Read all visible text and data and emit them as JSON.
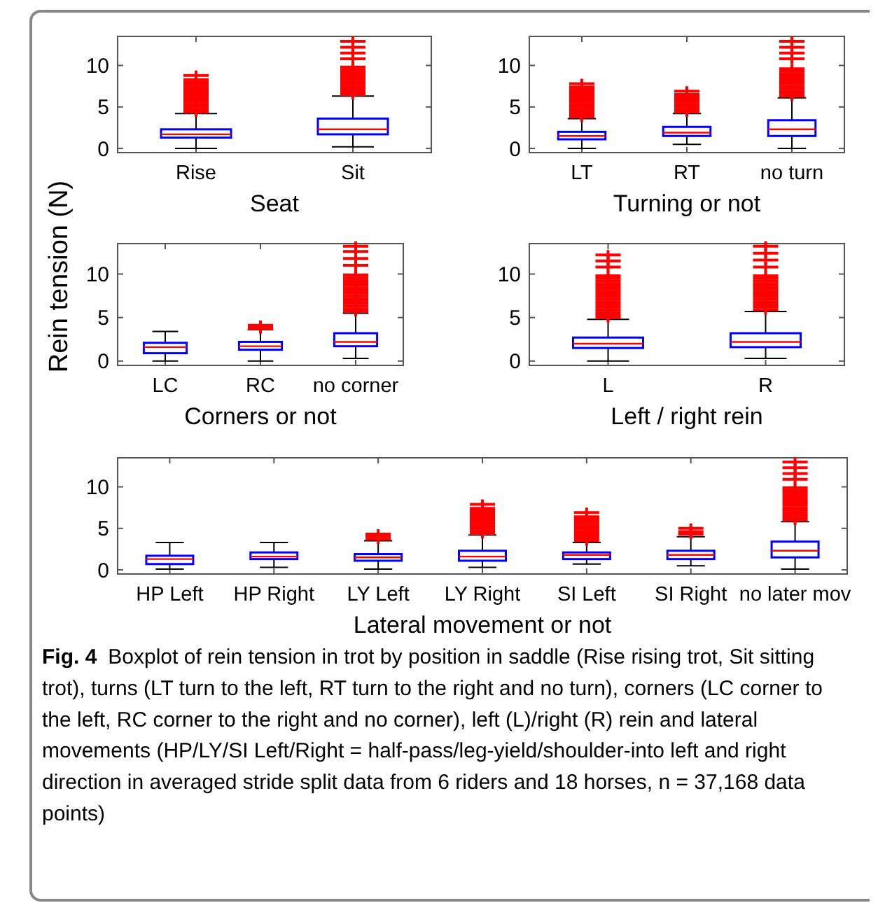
{
  "chart_data": [
    {
      "type": "box",
      "xlabel": "Seat",
      "categories": [
        "Rise",
        "Sit"
      ],
      "ylim": [
        -0.5,
        13.5
      ],
      "yticks": [
        0,
        5,
        10
      ],
      "boxes": [
        {
          "low": 0,
          "q1": 1.3,
          "median": 1.7,
          "q3": 2.3,
          "high": 4.2,
          "outliers": [
            4.4,
            4.7,
            5.0,
            5.3,
            5.6,
            5.9,
            6.2,
            6.5,
            6.8,
            7.1,
            7.4,
            7.7,
            8.0,
            8.3,
            8.8
          ]
        },
        {
          "low": 0.2,
          "q1": 1.7,
          "median": 2.3,
          "q3": 3.6,
          "high": 6.3,
          "outliers": [
            6.5,
            6.8,
            7.1,
            7.4,
            7.7,
            8.0,
            8.3,
            8.6,
            8.9,
            9.2,
            9.5,
            9.8,
            10.8,
            11.5,
            12.2,
            12.9
          ]
        }
      ]
    },
    {
      "type": "box",
      "xlabel": "Turning or not",
      "categories": [
        "LT",
        "RT",
        "no turn"
      ],
      "ylim": [
        -0.5,
        13.5
      ],
      "yticks": [
        0,
        5,
        10
      ],
      "boxes": [
        {
          "low": 0,
          "q1": 1.1,
          "median": 1.5,
          "q3": 2.0,
          "high": 3.6,
          "outliers": [
            3.8,
            4.1,
            4.4,
            4.7,
            5.0,
            5.3,
            5.6,
            5.9,
            6.2,
            6.5,
            6.8,
            7.1,
            7.4,
            7.8
          ]
        },
        {
          "low": 0.5,
          "q1": 1.5,
          "median": 1.9,
          "q3": 2.6,
          "high": 4.2,
          "outliers": [
            4.4,
            4.7,
            5.0,
            5.3,
            5.6,
            5.9,
            6.2,
            6.5,
            6.9
          ]
        },
        {
          "low": 0,
          "q1": 1.5,
          "median": 2.3,
          "q3": 3.4,
          "high": 6.1,
          "outliers": [
            6.3,
            6.6,
            6.9,
            7.2,
            7.5,
            7.8,
            8.1,
            8.4,
            8.7,
            9.0,
            9.3,
            9.6,
            10.8,
            11.5,
            12.2,
            12.9
          ]
        }
      ]
    },
    {
      "type": "box",
      "xlabel": "Corners or not",
      "ylabel": "Rein tension (N)",
      "categories": [
        "LC",
        "RC",
        "no corner"
      ],
      "ylim": [
        -0.5,
        13.5
      ],
      "yticks": [
        0,
        5,
        10
      ],
      "boxes": [
        {
          "low": 0,
          "q1": 0.9,
          "median": 1.6,
          "q3": 2.1,
          "high": 3.4
        },
        {
          "low": 0,
          "q1": 1.3,
          "median": 1.7,
          "q3": 2.2,
          "high": 3.6,
          "outliers": [
            3.7,
            3.9,
            4.1
          ]
        },
        {
          "low": 0.3,
          "q1": 1.7,
          "median": 2.2,
          "q3": 3.2,
          "high": 5.5,
          "outliers": [
            5.7,
            6.0,
            6.3,
            6.6,
            6.9,
            7.2,
            7.5,
            7.8,
            8.1,
            8.4,
            8.7,
            9.0,
            9.3,
            9.6,
            9.9,
            11.0,
            11.8,
            12.6,
            13.2
          ]
        }
      ]
    },
    {
      "type": "box",
      "xlabel": "Left / right rein",
      "categories": [
        "L",
        "R"
      ],
      "ylim": [
        -0.5,
        13.5
      ],
      "yticks": [
        0,
        5,
        10
      ],
      "boxes": [
        {
          "low": 0,
          "q1": 1.5,
          "median": 2.0,
          "q3": 2.7,
          "high": 4.8,
          "outliers": [
            5.0,
            5.3,
            5.6,
            5.9,
            6.2,
            6.5,
            6.8,
            7.1,
            7.4,
            7.7,
            8.0,
            8.3,
            8.6,
            8.9,
            9.2,
            9.5,
            9.8,
            10.8,
            11.5,
            12.2
          ]
        },
        {
          "low": 0.3,
          "q1": 1.6,
          "median": 2.2,
          "q3": 3.2,
          "high": 5.7,
          "outliers": [
            5.9,
            6.2,
            6.5,
            6.8,
            7.1,
            7.4,
            7.7,
            8.0,
            8.3,
            8.6,
            8.9,
            9.2,
            9.5,
            9.8,
            10.8,
            11.6,
            12.4,
            13.2
          ]
        }
      ]
    },
    {
      "type": "box",
      "xlabel": "Lateral movement or not",
      "categories": [
        "HP Left",
        "HP Right",
        "LY Left",
        "LY Right",
        "SI Left",
        "SI Right",
        "no later mov"
      ],
      "ylim": [
        -0.5,
        13.5
      ],
      "yticks": [
        0,
        5,
        10
      ],
      "boxes": [
        {
          "low": 0.1,
          "q1": 0.7,
          "median": 1.3,
          "q3": 1.7,
          "high": 3.3
        },
        {
          "low": 0.3,
          "q1": 1.3,
          "median": 1.6,
          "q3": 2.1,
          "high": 3.3
        },
        {
          "low": 0.1,
          "q1": 1.1,
          "median": 1.5,
          "q3": 1.9,
          "high": 3.5,
          "outliers": [
            3.7,
            4.0,
            4.3
          ]
        },
        {
          "low": 0.3,
          "q1": 1.1,
          "median": 1.6,
          "q3": 2.3,
          "high": 4.2,
          "outliers": [
            4.4,
            4.7,
            5.0,
            5.3,
            5.6,
            5.9,
            6.2,
            6.5,
            6.8,
            7.1,
            7.4,
            7.9
          ]
        },
        {
          "low": 0.7,
          "q1": 1.3,
          "median": 1.8,
          "q3": 2.1,
          "high": 3.3,
          "outliers": [
            3.5,
            3.8,
            4.1,
            4.4,
            4.7,
            5.0,
            5.3,
            5.6,
            5.9,
            6.2,
            6.4,
            6.9
          ]
        },
        {
          "low": 0.5,
          "q1": 1.3,
          "median": 1.8,
          "q3": 2.3,
          "high": 4.0,
          "outliers": [
            4.3,
            4.6,
            5.0
          ]
        },
        {
          "low": 0.1,
          "q1": 1.5,
          "median": 2.3,
          "q3": 3.4,
          "high": 5.8,
          "outliers": [
            6.0,
            6.3,
            6.6,
            6.9,
            7.2,
            7.5,
            7.8,
            8.1,
            8.4,
            8.7,
            9.0,
            9.3,
            9.6,
            9.9,
            10.9,
            11.6,
            12.3,
            13.0
          ]
        }
      ],
      "annotations": [
        "Fig. 4",
        "Boxplot of rein tension in trot by position in saddle (Rise rising trot, Sit sitting trot), turns (LT turn to the left, RT turn to the right and no turn), corners (LC corner to the left, RC corner to the right and no corner), left (L)/right (R) rein and lateral movements (HP/LY/SI Left/Right = half-pass/leg-yield/shoulder-into left and right direction in averaged stride split data from 6 riders and 18 horses, n = 37,168 data points)"
      ]
    }
  ]
}
